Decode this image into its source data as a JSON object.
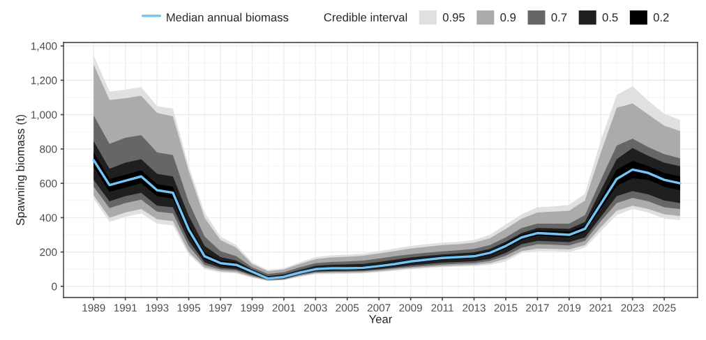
{
  "chart_data": {
    "type": "line",
    "xlabel": "Year",
    "ylabel": "Spawning biomass (t)",
    "legend_title": "Credible interval",
    "legend": "top",
    "grid": true,
    "x": [
      1989,
      1990,
      1991,
      1992,
      1993,
      1994,
      1995,
      1996,
      1997,
      1998,
      1999,
      2000,
      2001,
      2002,
      2003,
      2004,
      2005,
      2006,
      2007,
      2008,
      2009,
      2010,
      2011,
      2012,
      2013,
      2014,
      2015,
      2016,
      2017,
      2018,
      2019,
      2020,
      2021,
      2022,
      2023,
      2024,
      2025,
      2026
    ],
    "xlim": [
      1987.1,
      2027.1
    ],
    "xticks": [
      1989,
      1991,
      1993,
      1995,
      1997,
      1999,
      2001,
      2003,
      2005,
      2007,
      2009,
      2011,
      2013,
      2015,
      2017,
      2019,
      2021,
      2023,
      2025
    ],
    "ylim": [
      -65,
      1420
    ],
    "yticks": [
      0,
      200,
      400,
      600,
      800,
      {
        "value": 1000,
        "label": "1,000"
      },
      {
        "value": 1200,
        "label": "1,200"
      },
      {
        "value": 1400,
        "label": "1,400"
      }
    ],
    "series": [
      {
        "name": "0.95",
        "color": "#e0e0e0",
        "values": [
          null,
          null,
          null,
          null,
          null,
          null,
          null,
          null,
          null,
          null,
          null,
          null,
          null,
          null,
          null,
          null,
          null,
          null,
          null,
          null,
          null,
          null,
          null,
          null,
          null,
          null,
          null,
          null,
          null,
          null,
          null,
          null,
          null,
          null,
          null,
          null,
          null,
          null
        ],
        "lower": [
          510,
          375,
          405,
          425,
          365,
          355,
          185,
          100,
          80,
          75,
          50,
          30,
          35,
          55,
          70,
          72,
          73,
          75,
          82,
          90,
          98,
          105,
          112,
          115,
          118,
          125,
          145,
          195,
          205,
          205,
          200,
          225,
          320,
          415,
          450,
          430,
          395,
          385
        ],
        "upper": [
          1345,
          1135,
          1145,
          1160,
          1050,
          1035,
          700,
          430,
          290,
          240,
          140,
          95,
          105,
          140,
          170,
          180,
          185,
          190,
          205,
          220,
          235,
          245,
          255,
          260,
          270,
          300,
          360,
          420,
          460,
          465,
          475,
          540,
          850,
          1115,
          1165,
          1080,
          1005,
          970
        ]
      },
      {
        "name": "0.9",
        "color": "#ababab",
        "values": [
          null,
          null,
          null,
          null,
          null,
          null,
          null,
          null,
          null,
          null,
          null,
          null,
          null,
          null,
          null,
          null,
          null,
          null,
          null,
          null,
          null,
          null,
          null,
          null,
          null,
          null,
          null,
          null,
          null,
          null,
          null,
          null,
          null,
          null,
          null,
          null,
          null,
          null
        ],
        "lower": [
          530,
          400,
          430,
          450,
          390,
          380,
          200,
          110,
          88,
          82,
          55,
          33,
          38,
          60,
          76,
          78,
          79,
          81,
          88,
          96,
          105,
          112,
          118,
          122,
          125,
          135,
          160,
          205,
          220,
          218,
          215,
          240,
          345,
          440,
          470,
          450,
          420,
          410
        ],
        "upper": [
          1290,
          1085,
          1095,
          1110,
          1010,
          990,
          670,
          400,
          270,
          225,
          130,
          88,
          98,
          130,
          158,
          168,
          172,
          178,
          192,
          206,
          220,
          230,
          240,
          245,
          255,
          280,
          335,
          395,
          430,
          435,
          440,
          500,
          780,
          1040,
          1065,
          1000,
          935,
          905
        ]
      },
      {
        "name": "0.7",
        "color": "#666666",
        "values": [
          null,
          null,
          null,
          null,
          null,
          null,
          null,
          null,
          null,
          null,
          null,
          null,
          null,
          null,
          null,
          null,
          null,
          null,
          null,
          null,
          null,
          null,
          null,
          null,
          null,
          null,
          null,
          null,
          null,
          null,
          null,
          null,
          null,
          null,
          null,
          null,
          null,
          null
        ],
        "lower": [
          580,
          455,
          485,
          505,
          435,
          425,
          235,
          125,
          98,
          92,
          62,
          36,
          42,
          65,
          82,
          85,
          86,
          88,
          95,
          104,
          113,
          120,
          127,
          132,
          135,
          148,
          178,
          225,
          245,
          242,
          238,
          265,
          380,
          485,
          515,
          495,
          460,
          450
        ],
        "upper": [
          995,
          830,
          865,
          880,
          780,
          765,
          490,
          290,
          205,
          175,
          110,
          72,
          82,
          110,
          135,
          142,
          145,
          150,
          162,
          175,
          187,
          196,
          204,
          210,
          218,
          240,
          285,
          340,
          365,
          365,
          365,
          415,
          620,
          820,
          860,
          810,
          770,
          745
        ]
      },
      {
        "name": "0.5",
        "color": "#1f1f1f",
        "values": [
          null,
          null,
          null,
          null,
          null,
          null,
          null,
          null,
          null,
          null,
          null,
          null,
          null,
          null,
          null,
          null,
          null,
          null,
          null,
          null,
          null,
          null,
          null,
          null,
          null,
          null,
          null,
          null,
          null,
          null,
          null,
          null,
          null,
          null,
          null,
          null,
          null,
          null
        ],
        "lower": [
          620,
          495,
          525,
          545,
          470,
          460,
          265,
          140,
          108,
          100,
          68,
          38,
          45,
          70,
          87,
          90,
          91,
          93,
          100,
          110,
          122,
          130,
          138,
          142,
          146,
          160,
          195,
          245,
          265,
          262,
          258,
          285,
          405,
          525,
          555,
          535,
          500,
          485
        ],
        "upper": [
          845,
          685,
          720,
          740,
          655,
          640,
          410,
          235,
          170,
          150,
          98,
          60,
          70,
          95,
          120,
          126,
          128,
          131,
          142,
          155,
          168,
          177,
          186,
          192,
          198,
          218,
          260,
          310,
          340,
          338,
          335,
          375,
          560,
          740,
          805,
          760,
          720,
          700
        ]
      },
      {
        "name": "0.2",
        "color": "#000000",
        "values": [
          null,
          null,
          null,
          null,
          null,
          null,
          null,
          null,
          null,
          null,
          null,
          null,
          null,
          null,
          null,
          null,
          null,
          null,
          null,
          null,
          null,
          null,
          null,
          null,
          null,
          null,
          null,
          null,
          null,
          null,
          null,
          null,
          null,
          null,
          null,
          null,
          null,
          null
        ],
        "lower": [
          695,
          550,
          575,
          600,
          525,
          510,
          300,
          158,
          122,
          112,
          78,
          40,
          50,
          75,
          93,
          97,
          98,
          100,
          110,
          120,
          135,
          145,
          155,
          160,
          165,
          182,
          220,
          270,
          295,
          290,
          285,
          315,
          450,
          585,
          630,
          620,
          580,
          560
        ],
        "upper": [
          780,
          625,
          650,
          675,
          595,
          580,
          360,
          195,
          150,
          138,
          92,
          50,
          60,
          87,
          108,
          113,
          114,
          117,
          127,
          140,
          155,
          165,
          175,
          180,
          185,
          205,
          250,
          300,
          325,
          322,
          318,
          355,
          510,
          680,
          730,
          700,
          660,
          640
        ]
      },
      {
        "name": "Median annual biomass",
        "color": "#73c5f5",
        "values": [
          735,
          590,
          615,
          640,
          560,
          545,
          330,
          175,
          135,
          125,
          85,
          45,
          55,
          80,
          100,
          105,
          105,
          108,
          118,
          130,
          145,
          155,
          165,
          170,
          175,
          195,
          235,
          285,
          310,
          305,
          300,
          335,
          480,
          625,
          680,
          660,
          620,
          600
        ]
      }
    ]
  }
}
